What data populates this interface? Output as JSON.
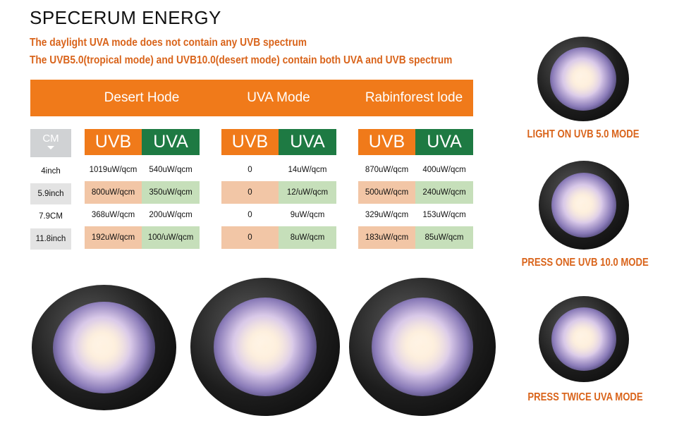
{
  "title": "SPECERUM ENERGY",
  "subtitle_1": "The daylight UVA mode does not contain any UVB spectrum",
  "subtitle_2": "The UVB5.0(tropical mode) and UVB10.0(desert mode) contain both UVA and UVB spectrum",
  "modes": [
    "Desert Hode",
    "UVA Mode",
    "Rabinforest lode"
  ],
  "cm_header": "CM",
  "distances": [
    "4inch",
    "5.9inch",
    "7.9CM",
    "11.8inch"
  ],
  "uvb_label": "UVB",
  "uva_label": "UVA",
  "table": {
    "desert": {
      "uvb": [
        "1019uW/qcm",
        "800uW/qcm",
        "368uW/qcm",
        "192uW/qcm"
      ],
      "uva": [
        "540uW/qcm",
        "350uW/qcm",
        "200uW/qcm",
        "100/uW/qcm"
      ]
    },
    "uva_mode": {
      "uvb": [
        "0",
        "0",
        "0",
        "0"
      ],
      "uva": [
        "14uW/qcm",
        "12/uW/qcm",
        "9uW/qcm",
        "8uW/qcm"
      ]
    },
    "rainforest": {
      "uvb": [
        "870uW/qcm",
        "500uW/qcm",
        "329uW/qcm",
        "183uW/qcm"
      ],
      "uva": [
        "400uW/qcm",
        "240uW/qcm",
        "153uW/qcm",
        "85uW/qcm"
      ]
    }
  },
  "captions": [
    "LIGHT ON UVB 5.0 MODE",
    "PRESS ONE UVB 10.0 MODE",
    "PRESS TWICE UVA MODE"
  ],
  "colors": {
    "orange": "#f07a1a",
    "green": "#1e7a43",
    "caption": "#d9641b"
  }
}
